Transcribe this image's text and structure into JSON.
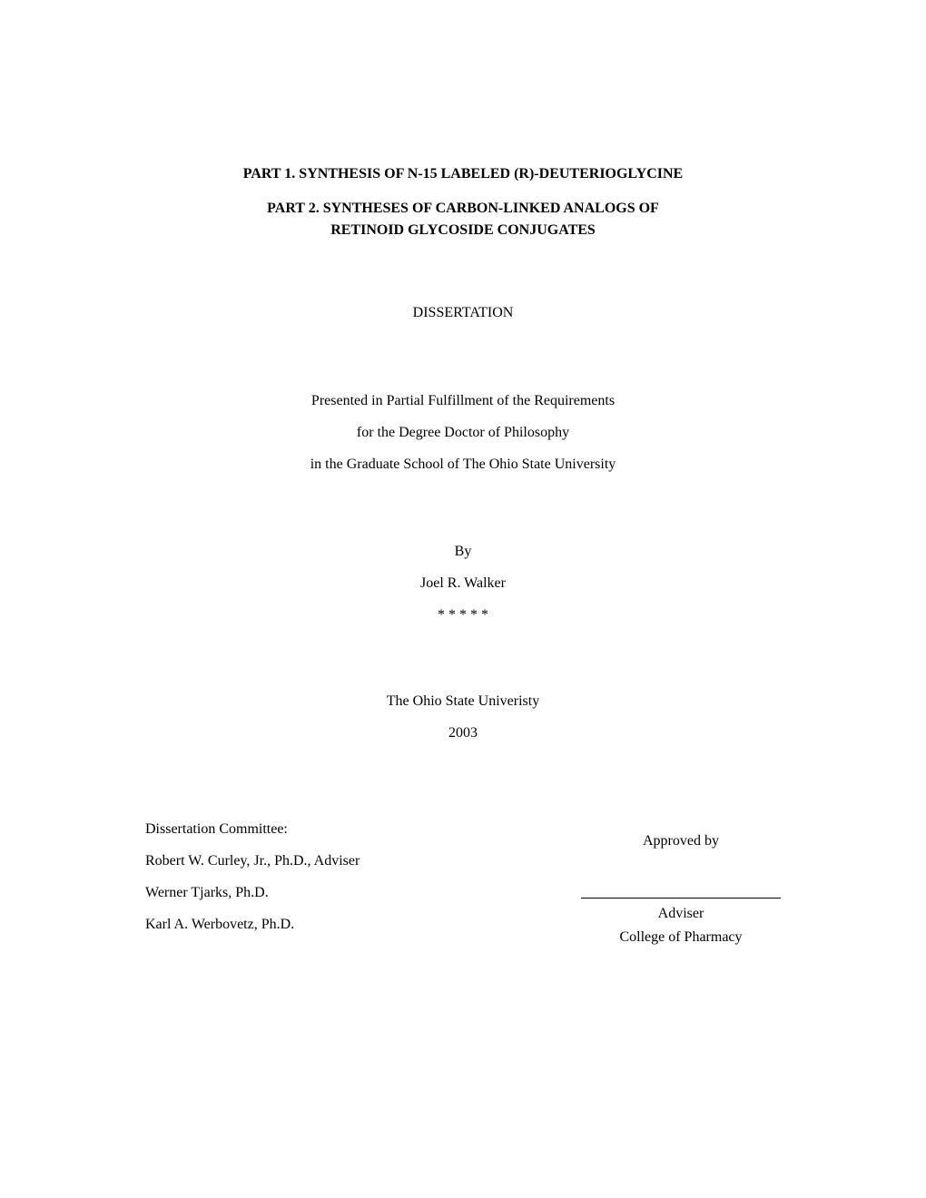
{
  "document": {
    "background_color": "#ffffff",
    "text_color": "#000000",
    "font_family": "Times New Roman",
    "base_fontsize": 16,
    "title_fontsize": 16,
    "title_weight": "bold"
  },
  "title": {
    "part1": "PART 1.  SYNTHESIS OF N-15 LABELED (R)-DEUTERIOGLYCINE",
    "part2_line1": "PART 2.  SYNTHESES OF CARBON-LINKED ANALOGS OF",
    "part2_line2": "RETINOID GLYCOSIDE CONJUGATES"
  },
  "document_type": "DISSERTATION",
  "fulfillment": {
    "line1": "Presented in Partial Fulfillment of the Requirements",
    "line2": "for the Degree Doctor of Philosophy",
    "line3": "in the Graduate School of The Ohio State University"
  },
  "author": {
    "by_label": "By",
    "name": "Joel R. Walker",
    "separator": "* * * * *"
  },
  "institution": {
    "name": "The Ohio State Univeristy",
    "year": "2003"
  },
  "committee": {
    "heading": "Dissertation Committee:",
    "members": [
      "Robert W. Curley, Jr., Ph.D., Adviser",
      "Werner Tjarks, Ph.D.",
      "Karl A. Werbovetz, Ph.D."
    ]
  },
  "approval": {
    "approved_by": "Approved by",
    "adviser_label": "Adviser",
    "college": "College of Pharmacy"
  }
}
